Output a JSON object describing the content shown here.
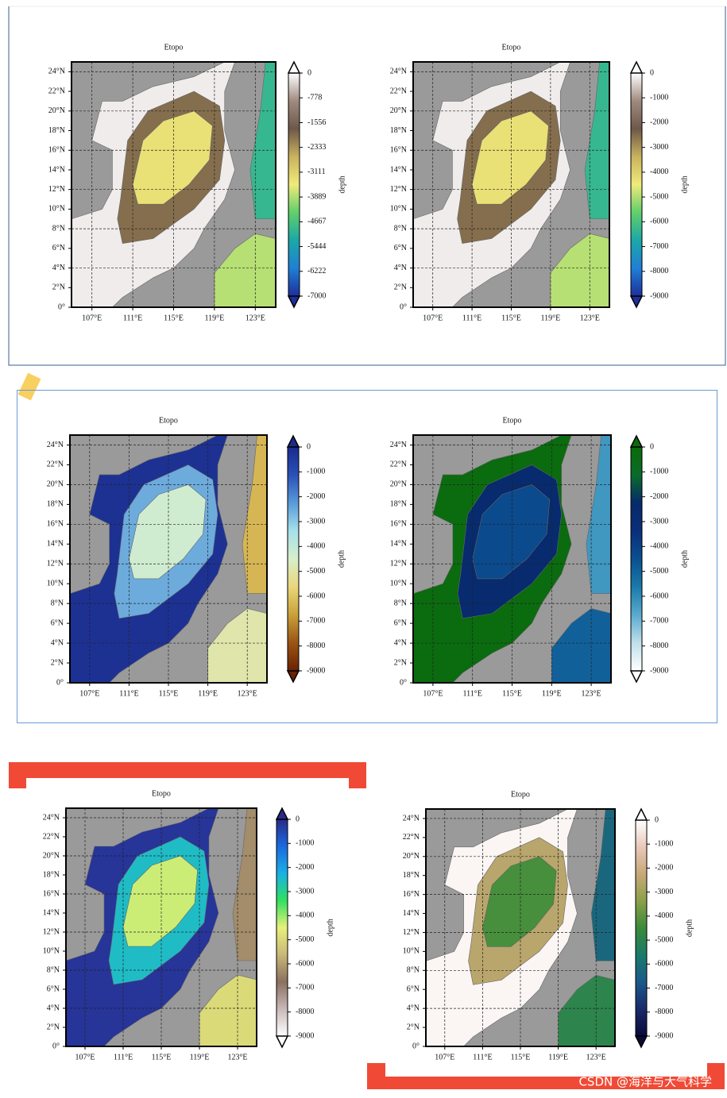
{
  "map_axes": {
    "lon_lim": [
      105,
      125
    ],
    "lat_lim": [
      0,
      25
    ],
    "lat_ticks": [
      {
        "value": 0,
        "label": "0°"
      },
      {
        "value": 2,
        "label": "2°N"
      },
      {
        "value": 4,
        "label": "4°N"
      },
      {
        "value": 6,
        "label": "6°N"
      },
      {
        "value": 8,
        "label": "8°N"
      },
      {
        "value": 10,
        "label": "10°N"
      },
      {
        "value": 12,
        "label": "12°N"
      },
      {
        "value": 14,
        "label": "14°N"
      },
      {
        "value": 16,
        "label": "16°N"
      },
      {
        "value": 18,
        "label": "18°N"
      },
      {
        "value": 20,
        "label": "20°N"
      },
      {
        "value": 22,
        "label": "22°N"
      },
      {
        "value": 24,
        "label": "24°N"
      }
    ],
    "lon_ticks": [
      {
        "value": 107,
        "label": "107°E"
      },
      {
        "value": 111,
        "label": "111°E"
      },
      {
        "value": 115,
        "label": "115°E"
      },
      {
        "value": 119,
        "label": "119°E"
      },
      {
        "value": 123,
        "label": "123°E"
      }
    ]
  },
  "panels": [
    {
      "title": "Etopo",
      "cbar_label": "depth",
      "cbar_lim": [
        0,
        -7000
      ],
      "cbar_ticks": [
        0,
        -778,
        -1556,
        -2333,
        -3111,
        -3889,
        -4667,
        -5444,
        -6222,
        -7000
      ],
      "colors": [
        "#ffffff",
        "#a08a80",
        "#6e5848",
        "#c9b25e",
        "#f0ea7a",
        "#5fd06a",
        "#1ca7a8",
        "#1f7fd6",
        "#1e2f9a"
      ]
    },
    {
      "title": "Etopo",
      "cbar_label": "depth",
      "cbar_lim": [
        0,
        -9000
      ],
      "cbar_ticks": [
        0,
        -1000,
        -2000,
        -3000,
        -4000,
        -5000,
        -6000,
        -7000,
        -8000,
        -9000
      ],
      "colors": [
        "#ffffff",
        "#a08a80",
        "#6e5848",
        "#c9b25e",
        "#f0ea7a",
        "#5fd06a",
        "#1ca7a8",
        "#1f7fd6",
        "#1e2f9a"
      ]
    },
    {
      "title": "Etopo",
      "cbar_label": "depth",
      "cbar_lim": [
        0,
        -9000
      ],
      "cbar_ticks": [
        0,
        -1000,
        -2000,
        -3000,
        -4000,
        -5000,
        -6000,
        -7000,
        -8000,
        -9000
      ],
      "colors": [
        "#1a2b8c",
        "#2a50b8",
        "#5a9ad8",
        "#a6e0ea",
        "#d8eecb",
        "#e9d77a",
        "#c9a03a",
        "#9a5414",
        "#6a2204"
      ]
    },
    {
      "title": "Etopo",
      "cbar_label": "depth",
      "cbar_lim": [
        0,
        -9000
      ],
      "cbar_ticks": [
        0,
        -1000,
        -2000,
        -3000,
        -4000,
        -5000,
        -6000,
        -7000,
        -8000,
        -9000
      ],
      "colors": [
        "#0a6b0a",
        "#0a6b2a",
        "#062a6a",
        "#0a2f7a",
        "#0b4f8f",
        "#1a7aaa",
        "#5aaace",
        "#c0dfea",
        "#ffffff"
      ]
    },
    {
      "title": "Etopo",
      "cbar_label": "depth",
      "cbar_lim": [
        0,
        -9000
      ],
      "cbar_ticks": [
        0,
        -1000,
        -2000,
        -3000,
        -4000,
        -5000,
        -6000,
        -7000,
        -8000,
        -9000
      ],
      "colors": [
        "#2a2a8a",
        "#1a6adf",
        "#1ab0e6",
        "#30e060",
        "#e8f07a",
        "#c8b878",
        "#8a7060",
        "#c8b8b8",
        "#ffffff"
      ]
    },
    {
      "title": "Etopo",
      "cbar_label": "depth",
      "cbar_lim": [
        0,
        -9000
      ],
      "cbar_ticks": [
        0,
        -1000,
        -2000,
        -3000,
        -4000,
        -5000,
        -6000,
        -7000,
        -8000,
        -9000
      ],
      "colors": [
        "#ffffff",
        "#e8c8b8",
        "#c8a878",
        "#8aa04a",
        "#3a8a3a",
        "#1a7a6a",
        "#1a5a8a",
        "#1a2a6a",
        "#0a0a3a"
      ]
    }
  ],
  "watermark": "CSDN @海洋与大气科学"
}
